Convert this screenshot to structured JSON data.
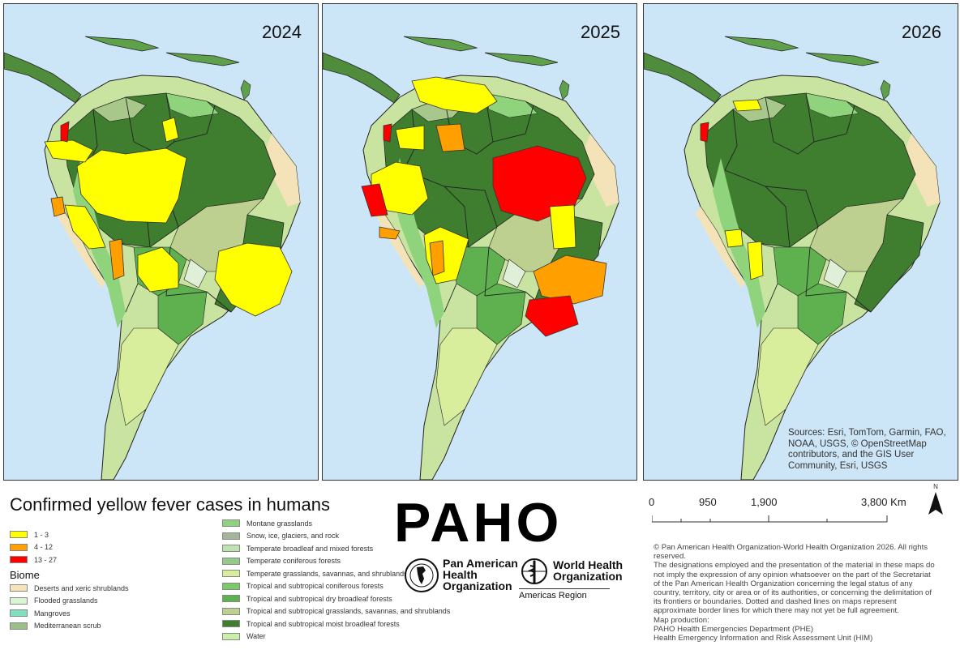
{
  "maps": [
    {
      "year": "2024"
    },
    {
      "year": "2025"
    },
    {
      "year": "2026"
    }
  ],
  "sources": "Sources: Esri, TomTom, Garmin, FAO, NOAA, USGS, © OpenStreetMap contributors, and the GIS User Community, Esri, USGS",
  "legend": {
    "title": "Confirmed yellow fever cases in humans",
    "case_classes": [
      {
        "label": "1 - 3",
        "color": "#ffff00"
      },
      {
        "label": "4 - 12",
        "color": "#ff9f00"
      },
      {
        "label": "13 - 27",
        "color": "#ff0000"
      }
    ],
    "biome_title": "Biome",
    "biomes_col1": [
      {
        "label": "Deserts and xeric shrublands",
        "color": "#f7e3b5"
      },
      {
        "label": "Flooded grasslands",
        "color": "#d6f5d0"
      },
      {
        "label": "Mangroves",
        "color": "#7fe0c0"
      },
      {
        "label": "Mediterranean scrub",
        "color": "#9cbf86"
      }
    ],
    "biomes_col2": [
      {
        "label": "Montane grasslands",
        "color": "#8fd47c"
      },
      {
        "label": "Snow, ice, glaciers, and rock",
        "color": "#a5b59b"
      },
      {
        "label": "Temperate broadleaf and mixed forests",
        "color": "#bfe3b0"
      },
      {
        "label": "Temperate coniferous forests",
        "color": "#95c98a"
      },
      {
        "label": "Temperate grasslands, savannas, and shrublands",
        "color": "#d8ee9c"
      },
      {
        "label": "Tropical and subtropical coniferous forests",
        "color": "#7cc96b"
      },
      {
        "label": "Tropical and subtropical dry broadleaf forests",
        "color": "#5fb04f"
      },
      {
        "label": "Tropical and subtropical grasslands, savannas, and shrublands",
        "color": "#bdd08f"
      },
      {
        "label": "Tropical and subtropical moist broadleaf forests",
        "color": "#3f7d2f"
      },
      {
        "label": "Water",
        "color": "#c9efa8"
      }
    ]
  },
  "logo": {
    "paho": "PAHO",
    "paho_org_lines": [
      "Pan American",
      "Health",
      "Organization"
    ],
    "who_lines": [
      "World Health",
      "Organization"
    ],
    "region": "Americas Region"
  },
  "scale_bar": {
    "ticks": [
      "0",
      "950",
      "1,900",
      "3,800 Km"
    ]
  },
  "north_arrow": "N",
  "copyright": [
    "© Pan American Health Organization-World Health Organization 2026. All rights reserved.",
    "The designations employed and the presentation of the material in these maps do not imply the expression of any opinion whatsoever on the part of the Secretariat of the Pan American Health Organization concerning the legal status of any country, territory, city or area or of its authorities, or concerning the delimitation of its frontiers or boundaries. Dotted and dashed lines on maps represent approximate border lines for which there may not yet be full agreement.",
    "Map production:",
    "PAHO Health Emergencies Department (PHE)",
    "Health Emergency Information and Risk Assessment Unit (HIM)"
  ],
  "colors": {
    "ocean": "#cde6f7",
    "forest": "#3f7d2f",
    "case_low": "#ffff00",
    "case_mid": "#ff9f00",
    "case_high": "#ff0000"
  }
}
